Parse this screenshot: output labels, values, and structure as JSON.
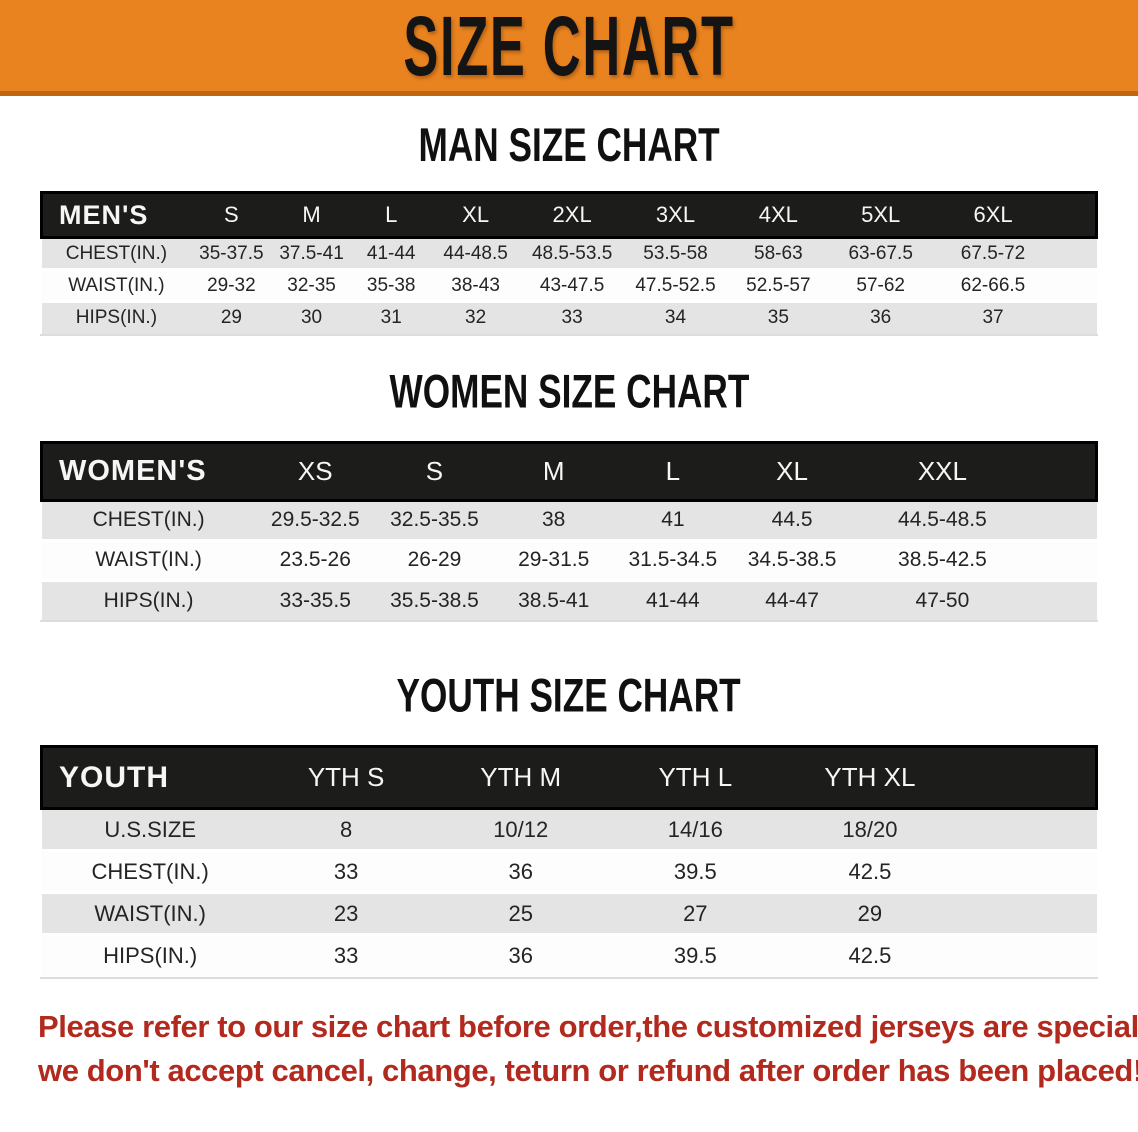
{
  "banner": {
    "title": "SIZE CHART"
  },
  "colors": {
    "banner_bg": "#E9831F",
    "banner_edge": "#C0660F",
    "table_header_bg": "#1C1C1A",
    "row_stripe": "#E4E4E4",
    "note_text": "#B2291E"
  },
  "sections": [
    {
      "heading": "MAN SIZE CHART",
      "table": {
        "label": "MEN'S",
        "sizes": [
          "S",
          "M",
          "L",
          "XL",
          "2XL",
          "3XL",
          "4XL",
          "5XL",
          "6XL"
        ],
        "rows": [
          {
            "label": "CHEST(IN.)",
            "values": [
              "35-37.5",
              "37.5-41",
              "41-44",
              "44-48.5",
              "48.5-53.5",
              "53.5-58",
              "58-63",
              "63-67.5",
              "67.5-72"
            ]
          },
          {
            "label": "WAIST(IN.)",
            "values": [
              "29-32",
              "32-35",
              "35-38",
              "38-43",
              "43-47.5",
              "47.5-52.5",
              "52.5-57",
              "57-62",
              "62-66.5"
            ]
          },
          {
            "label": "HIPS(IN.)",
            "values": [
              "29",
              "30",
              "31",
              "32",
              "33",
              "34",
              "35",
              "36",
              "37"
            ]
          }
        ]
      }
    },
    {
      "heading": "WOMEN SIZE CHART",
      "table": {
        "label": "WOMEN'S",
        "sizes": [
          "XS",
          "S",
          "M",
          "L",
          "XL",
          "XXL"
        ],
        "rows": [
          {
            "label": "CHEST(IN.)",
            "values": [
              "29.5-32.5",
              "32.5-35.5",
              "38",
              "41",
              "44.5",
              "44.5-48.5"
            ]
          },
          {
            "label": "WAIST(IN.)",
            "values": [
              "23.5-26",
              "26-29",
              "29-31.5",
              "31.5-34.5",
              "34.5-38.5",
              "38.5-42.5"
            ]
          },
          {
            "label": "HIPS(IN.)",
            "values": [
              "33-35.5",
              "35.5-38.5",
              "38.5-41",
              "41-44",
              "44-47",
              "47-50"
            ]
          }
        ]
      }
    },
    {
      "heading": "YOUTH SIZE CHART",
      "table": {
        "label": "YOUTH",
        "sizes": [
          "YTH S",
          "YTH M",
          "YTH L",
          "YTH XL"
        ],
        "rows": [
          {
            "label": "U.S.SIZE",
            "values": [
              "8",
              "10/12",
              "14/16",
              "18/20"
            ]
          },
          {
            "label": "CHEST(IN.)",
            "values": [
              "33",
              "36",
              "39.5",
              "42.5"
            ]
          },
          {
            "label": "WAIST(IN.)",
            "values": [
              "23",
              "25",
              "27",
              "29"
            ]
          },
          {
            "label": "HIPS(IN.)",
            "values": [
              "33",
              "36",
              "39.5",
              "42.5"
            ]
          }
        ]
      }
    }
  ],
  "note": {
    "lines": [
      "Please refer to our size chart before order,the customized jerseys are special products,",
      "we don't accept cancel, change, teturn or refund after order has been placed!"
    ]
  }
}
